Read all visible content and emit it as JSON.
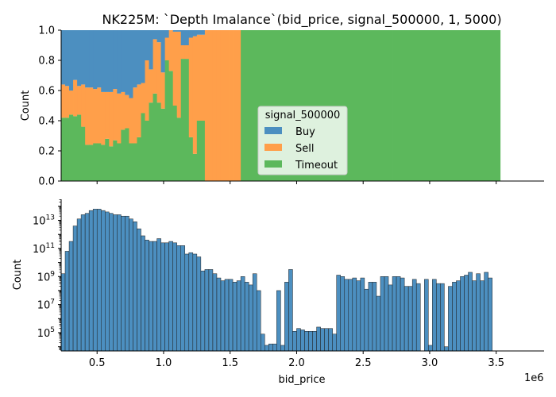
{
  "chart_data": [
    {
      "type": "area",
      "title": "NK225M: `Depth Imalance`(bid_price, signal_500000, 1, 5000)",
      "xlabel": "",
      "ylabel": "Count",
      "xlim": [
        230000,
        3860000
      ],
      "ylim": [
        0,
        1
      ],
      "y_ticks": [
        "0.0",
        "0.2",
        "0.4",
        "0.6",
        "0.8",
        "1.0"
      ],
      "bin_edges": [
        230000,
        260000,
        290000,
        320000,
        350000,
        380000,
        410000,
        440000,
        470000,
        500000,
        530000,
        560000,
        590000,
        620000,
        650000,
        680000,
        710000,
        740000,
        770000,
        800000,
        830000,
        860000,
        890000,
        920000,
        950000,
        980000,
        1010000,
        1040000,
        1070000,
        1100000,
        1130000,
        1160000,
        1190000,
        1220000,
        1250000,
        1280000,
        1310000,
        1340000,
        1370000,
        1400000,
        1430000,
        1460000,
        1490000,
        1520000,
        1550000,
        1580000,
        1610000,
        1640000,
        1670000,
        1700000,
        1730000,
        1760000,
        1790000,
        1820000,
        1850000,
        1880000,
        1910000,
        1940000,
        1970000,
        2000000,
        2030000,
        2060000,
        2090000,
        2120000,
        2150000,
        2180000,
        2210000,
        2240000,
        2270000,
        2300000,
        2330000,
        2360000,
        2390000,
        2420000,
        2450000,
        2480000,
        2510000,
        2540000,
        2570000,
        2600000,
        2630000,
        2660000,
        2690000,
        2720000,
        2750000,
        2780000,
        2810000,
        2840000,
        2870000,
        2900000,
        2930000,
        2960000,
        2990000,
        3020000,
        3050000,
        3080000,
        3110000,
        3140000,
        3170000,
        3200000,
        3230000,
        3260000,
        3290000,
        3320000,
        3350000,
        3380000,
        3410000,
        3440000,
        3470000,
        3500000,
        3530000,
        3560000,
        3590000,
        3620000,
        3650000,
        3680000,
        3710000,
        3740000,
        3770000,
        3800000,
        3830000,
        3860000
      ],
      "series": [
        {
          "name": "Timeout",
          "color": "#5cb85c",
          "values": [
            0.42,
            0.42,
            0.44,
            0.43,
            0.44,
            0.36,
            0.24,
            0.24,
            0.25,
            0.25,
            0.24,
            0.28,
            0.23,
            0.27,
            0.25,
            0.34,
            0.35,
            0.25,
            0.25,
            0.29,
            0.45,
            0.4,
            0.52,
            0.58,
            0.52,
            0.48,
            0.8,
            0.73,
            0.5,
            0.42,
            0.81,
            0.81,
            0.29,
            0.18,
            0.4,
            0.4,
            0,
            0,
            0,
            0,
            0,
            0,
            0,
            0,
            0,
            1,
            1,
            1,
            1,
            1,
            1,
            1,
            1,
            1,
            1,
            1,
            1,
            1,
            1,
            1,
            1,
            1,
            1,
            1,
            1,
            1,
            1,
            1,
            1,
            1,
            1,
            1,
            1,
            1,
            1,
            1,
            1,
            1,
            1,
            1,
            1,
            1,
            1,
            1,
            1,
            1,
            1,
            1,
            1,
            1,
            1,
            1,
            1,
            1,
            1,
            1,
            1,
            1,
            1,
            1,
            1,
            1,
            1,
            1,
            1,
            1,
            1,
            1,
            1,
            1
          ]
        },
        {
          "name": "Sell",
          "color": "#ff9f4a",
          "values": [
            0.22,
            0.21,
            0.16,
            0.24,
            0.19,
            0.28,
            0.38,
            0.38,
            0.36,
            0.37,
            0.35,
            0.31,
            0.36,
            0.34,
            0.33,
            0.25,
            0.22,
            0.3,
            0.37,
            0.35,
            0.2,
            0.4,
            0.22,
            0.36,
            0.4,
            0.24,
            0.15,
            0.27,
            0.49,
            0.57,
            0.09,
            0.09,
            0.66,
            0.78,
            0.57,
            0.57,
            1,
            1,
            1,
            1,
            1,
            1,
            1,
            1,
            1,
            0,
            0,
            0,
            0,
            0,
            0,
            0,
            0,
            0,
            0,
            0,
            0,
            0,
            0,
            0,
            0,
            0,
            0,
            0,
            0,
            0,
            0,
            0,
            0,
            0,
            0,
            0,
            0,
            0,
            0,
            0,
            0,
            0,
            0,
            0,
            0,
            0,
            0,
            0,
            0,
            0,
            0,
            0,
            0,
            0,
            0,
            0,
            0,
            0,
            0,
            0,
            0,
            0,
            0,
            0,
            0,
            0,
            0,
            0,
            0,
            0,
            0,
            0,
            0,
            0
          ]
        },
        {
          "name": "Buy",
          "color": "#4c8fc0",
          "values": [
            0.36,
            0.37,
            0.4,
            0.33,
            0.37,
            0.36,
            0.38,
            0.38,
            0.39,
            0.38,
            0.41,
            0.41,
            0.41,
            0.39,
            0.42,
            0.41,
            0.43,
            0.45,
            0.38,
            0.36,
            0.35,
            0.2,
            0.26,
            0.06,
            0.08,
            0.28,
            0.05,
            0,
            0.01,
            0.01,
            0.1,
            0.1,
            0.05,
            0.04,
            0.03,
            0.03,
            0,
            0,
            0,
            0,
            0,
            0,
            0,
            0,
            0,
            0,
            0,
            0,
            0,
            0,
            0,
            0,
            0,
            0,
            0,
            0,
            0,
            0,
            0,
            0,
            0,
            0,
            0,
            0,
            0,
            0,
            0,
            0,
            0,
            0,
            0,
            0,
            0,
            0,
            0,
            0,
            0,
            0,
            0,
            0,
            0,
            0,
            0,
            0,
            0,
            0,
            0,
            0,
            0,
            0,
            0,
            0,
            0,
            0,
            0,
            0,
            0,
            0,
            0,
            0,
            0,
            0,
            0,
            0,
            0,
            0,
            0,
            0,
            0,
            0
          ]
        }
      ],
      "legend": {
        "title": "signal_500000",
        "entries": [
          "Buy",
          "Sell",
          "Timeout"
        ],
        "placement": "center"
      }
    },
    {
      "type": "bar",
      "title": "",
      "xlabel": "bid_price",
      "ylabel": "Count",
      "x_offset_label": "1e6",
      "x_ticks": [
        {
          "value": 500000,
          "label": "0.5"
        },
        {
          "value": 1000000,
          "label": "1.0"
        },
        {
          "value": 1500000,
          "label": "1.5"
        },
        {
          "value": 2000000,
          "label": "2.0"
        },
        {
          "value": 2500000,
          "label": "2.5"
        },
        {
          "value": 3000000,
          "label": "3.0"
        },
        {
          "value": 3500000,
          "label": "3.5"
        }
      ],
      "y_scale": "log",
      "y_ticks": [
        {
          "value": 100000,
          "base": "10",
          "exp": "5"
        },
        {
          "value": 10000000,
          "base": "10",
          "exp": "7"
        },
        {
          "value": 1000000000,
          "base": "10",
          "exp": "9"
        },
        {
          "value": 100000000000,
          "base": "10",
          "exp": "11"
        },
        {
          "value": 10000000000000,
          "base": "10",
          "exp": "13"
        }
      ],
      "ylim_log10": [
        3.7,
        14.5
      ],
      "color": "#4c8fc0",
      "bin_width": 30000,
      "x_start": 230000,
      "log10_counts": [
        9.2,
        10.8,
        11.5,
        12.6,
        13.1,
        13.4,
        13.5,
        13.7,
        13.8,
        13.8,
        13.7,
        13.6,
        13.5,
        13.4,
        13.4,
        13.3,
        13.3,
        13.1,
        12.9,
        12.4,
        11.9,
        11.6,
        11.5,
        11.5,
        11.7,
        11.4,
        11.4,
        11.5,
        11.4,
        11.2,
        11.2,
        10.6,
        10.7,
        10.6,
        10.4,
        9.4,
        9.5,
        9.5,
        9.2,
        8.9,
        8.7,
        8.8,
        8.8,
        8.6,
        8.7,
        9.0,
        8.6,
        8.4,
        9.2,
        8.0,
        4.9,
        4.1,
        4.2,
        4.2,
        8.0,
        4.1,
        8.6,
        9.5,
        5.1,
        5.3,
        5.2,
        5.1,
        5.1,
        5.1,
        5.4,
        5.3,
        5.3,
        5.3,
        4.9,
        9.1,
        9.0,
        8.8,
        8.8,
        8.9,
        8.7,
        8.9,
        8.1,
        8.6,
        8.6,
        7.6,
        9.0,
        9.0,
        8.4,
        9.0,
        9.0,
        8.9,
        8.3,
        8.3,
        8.8,
        8.5,
        3.7,
        8.8,
        4.1,
        8.8,
        8.5,
        8.5,
        4.0,
        8.3,
        8.6,
        8.7,
        9.0,
        9.1,
        9.3,
        8.7,
        9.2,
        8.7,
        9.3,
        8.9
      ]
    }
  ]
}
